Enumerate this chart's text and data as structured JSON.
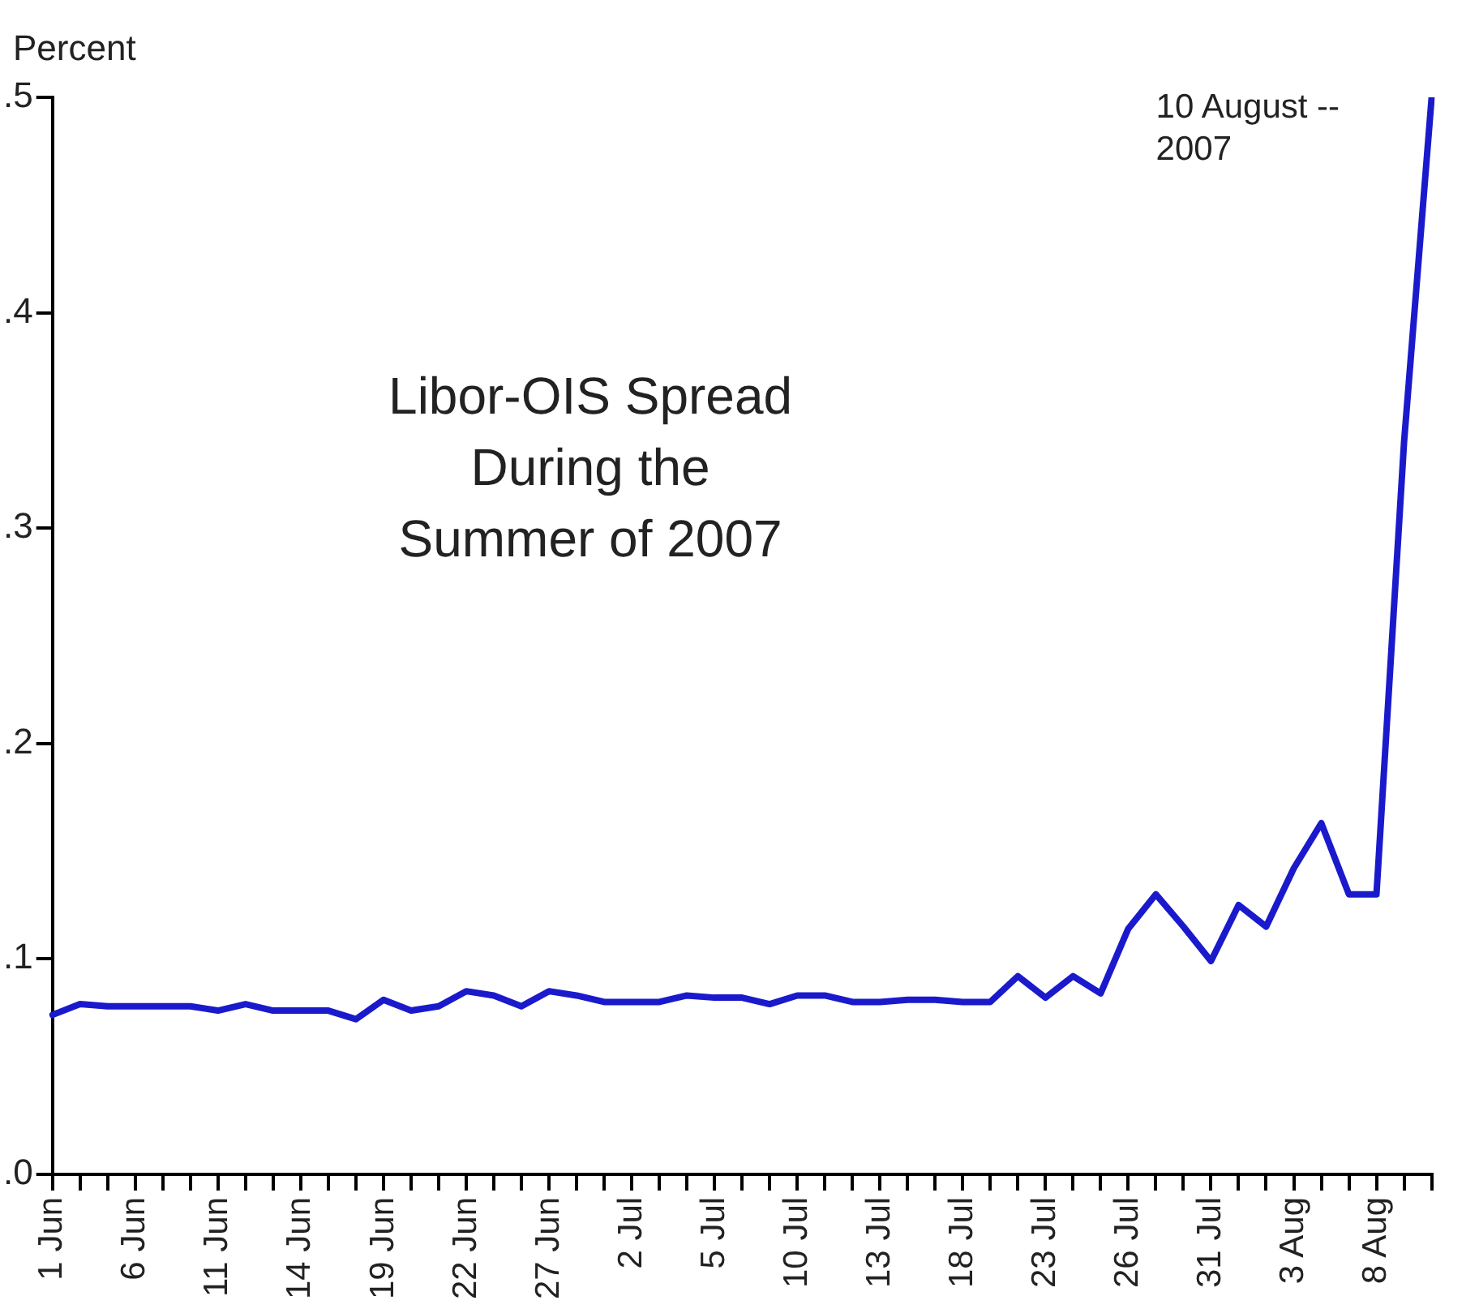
{
  "chart_data": {
    "type": "line",
    "title": "Libor-OIS Spread During the Summer of 2007",
    "ylabel": "Percent",
    "annotations": [
      "10 August -- 2007"
    ],
    "categories": [
      "1 Jun",
      null,
      null,
      "6 Jun",
      null,
      null,
      "11 Jun",
      null,
      null,
      "14 Jun",
      null,
      null,
      "19 Jun",
      null,
      null,
      "22 Jun",
      null,
      null,
      "27 Jun",
      null,
      null,
      "2 Jul",
      null,
      null,
      "5 Jul",
      null,
      null,
      "10 Jul",
      null,
      null,
      "13 Jul",
      null,
      null,
      "18 Jul",
      null,
      null,
      "23 Jul",
      null,
      null,
      "26 Jul",
      null,
      null,
      "31 Jul",
      null,
      null,
      "3 Aug",
      null,
      null,
      "8 Aug",
      null,
      null
    ],
    "series": [
      {
        "color": "#1a1acc",
        "values": [
          0.074,
          0.079,
          0.078,
          0.078,
          0.078,
          0.078,
          0.076,
          0.079,
          0.076,
          0.076,
          0.076,
          0.072,
          0.081,
          0.076,
          0.078,
          0.085,
          0.083,
          0.078,
          0.085,
          0.083,
          0.08,
          0.08,
          0.08,
          0.083,
          0.082,
          0.082,
          0.079,
          0.083,
          0.083,
          0.08,
          0.08,
          0.081,
          0.081,
          0.08,
          0.08,
          0.092,
          0.082,
          0.092,
          0.084,
          0.114,
          0.13,
          0.115,
          0.099,
          0.125,
          0.115,
          0.142,
          0.163,
          0.13,
          0.13,
          0.34,
          0.5
        ]
      }
    ],
    "ylim": [
      0,
      0.5
    ],
    "yticks": [
      {
        "value": 0,
        "label": ".0"
      },
      {
        "value": 0.1,
        "label": ".1"
      },
      {
        "value": 0.2,
        "label": ".2"
      },
      {
        "value": 0.3,
        "label": ".3"
      },
      {
        "value": 0.4,
        "label": ".4"
      },
      {
        "value": 0.5,
        "label": ".5"
      }
    ],
    "grid": false,
    "legend": false,
    "marker": "none",
    "line_style": "solid"
  }
}
